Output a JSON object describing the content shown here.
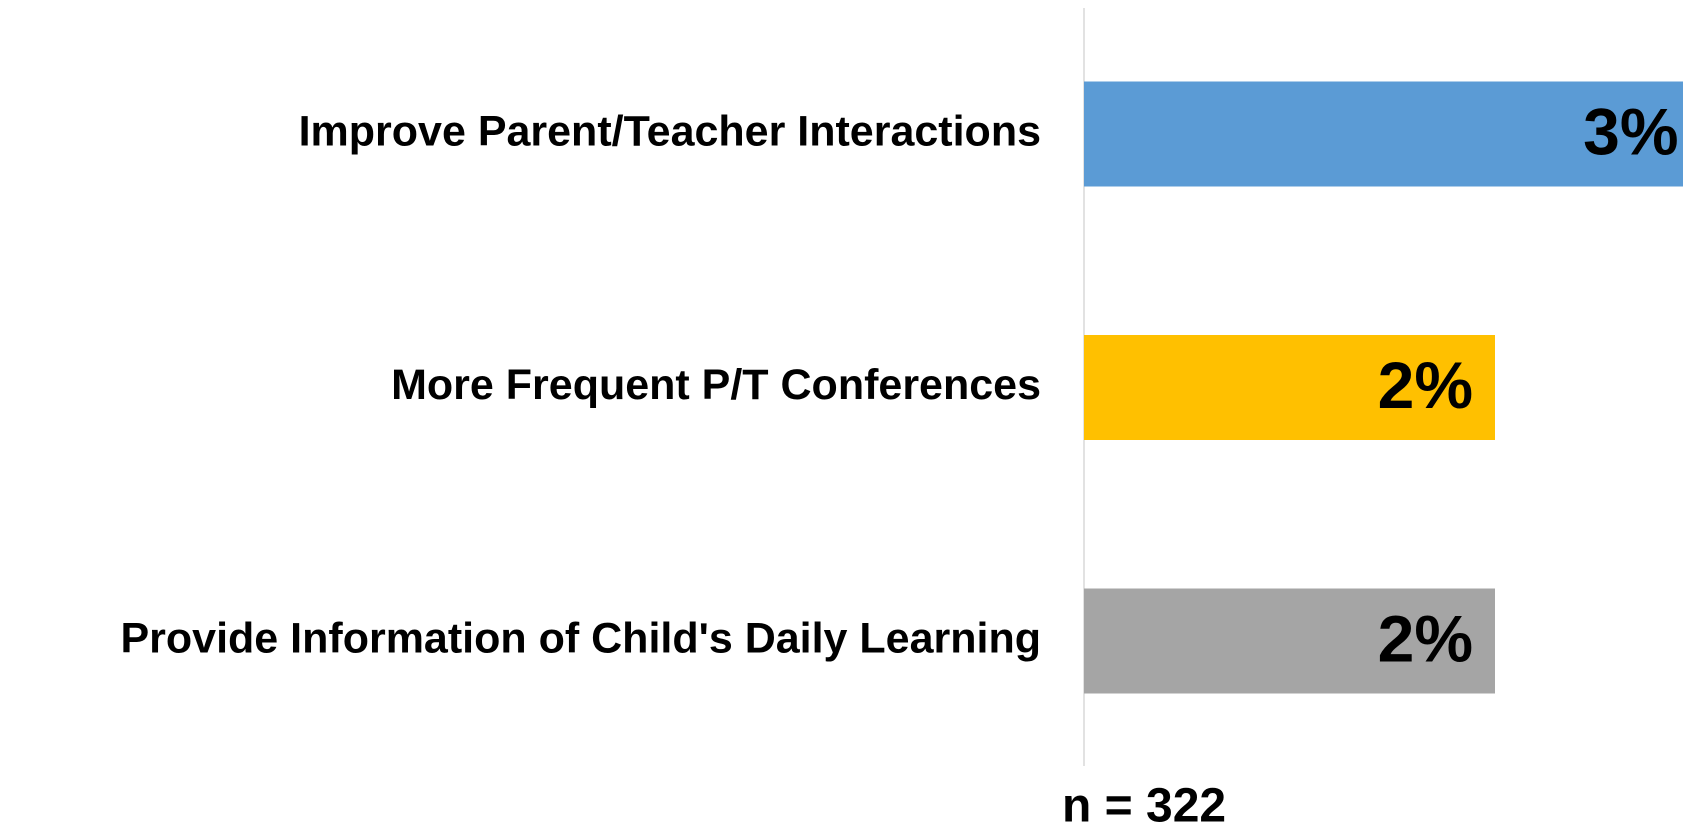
{
  "chart_data": {
    "type": "bar",
    "orientation": "horizontal",
    "categories": [
      "Improve Parent/Teacher Interactions",
      "More Frequent P/T Conferences",
      "Provide Information of Child's Daily Learning"
    ],
    "values": [
      3,
      2,
      2
    ],
    "value_labels": [
      "3%",
      "2%",
      "2%"
    ],
    "colors": [
      "#5b9bd5",
      "#ffc000",
      "#a5a5a5"
    ],
    "annotation": "n = 322"
  }
}
